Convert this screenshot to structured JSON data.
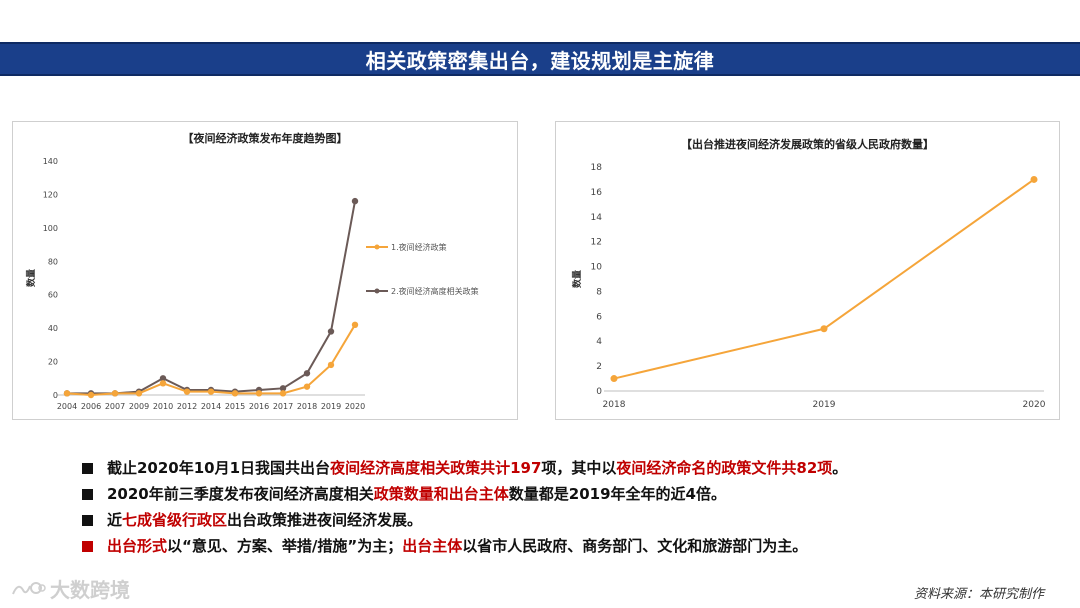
{
  "header": {
    "title": "相关政策密集出台，建设规划是主旋律"
  },
  "colors": {
    "banner": "#1a3f8a",
    "orange": "#f5a53a",
    "gray_line": "#6b5a57",
    "accent_red": "#c00000"
  },
  "chart_data": [
    {
      "type": "line",
      "title": "【夜间经济政策发布年度趋势图】",
      "ylabel": "数量",
      "xlabel": "",
      "categories": [
        "2004",
        "2006",
        "2007",
        "2009",
        "2010",
        "2012",
        "2014",
        "2015",
        "2016",
        "2017",
        "2018",
        "2019",
        "2020"
      ],
      "ylim": [
        0,
        140
      ],
      "yticks": [
        "0",
        "20",
        "40",
        "60",
        "80",
        "100",
        "120",
        "140"
      ],
      "legend_position": "right",
      "series": [
        {
          "name": "1.夜间经济政策",
          "color": "#f5a53a",
          "values": [
            1,
            0,
            1,
            1,
            7,
            2,
            2,
            1,
            1,
            1,
            5,
            18,
            42
          ]
        },
        {
          "name": "2.夜间经济高度相关政策",
          "color": "#6b5a57",
          "values": [
            1,
            1,
            1,
            2,
            10,
            3,
            3,
            2,
            3,
            4,
            13,
            38,
            116
          ]
        }
      ]
    },
    {
      "type": "line",
      "title": "【出台推进夜间经济发展政策的省级人民政府数量】",
      "ylabel": "数量",
      "xlabel": "",
      "categories": [
        "2018",
        "2019",
        "2020"
      ],
      "ylim": [
        0,
        18
      ],
      "yticks": [
        "0",
        "2",
        "4",
        "6",
        "8",
        "10",
        "12",
        "14",
        "16",
        "18"
      ],
      "series": [
        {
          "color": "#f5a53a",
          "values": [
            1,
            5,
            17
          ]
        }
      ]
    }
  ],
  "bullets": [
    {
      "segments": [
        {
          "text": "截止2020年10月1日我国共出台",
          "red": false
        },
        {
          "text": "夜间经济高度相关政策共计197",
          "red": true
        },
        {
          "text": "项，其中以",
          "red": false
        },
        {
          "text": "夜间经济命名的政策文件共82项",
          "red": true
        },
        {
          "text": "。",
          "red": false
        }
      ],
      "mark_red": false
    },
    {
      "segments": [
        {
          "text": "2020年前三季度发布夜间经济高度相关",
          "red": false
        },
        {
          "text": "政策数量和出台主体",
          "red": true
        },
        {
          "text": "数量都是2019年全年的近4倍。",
          "red": false
        }
      ],
      "mark_red": false
    },
    {
      "segments": [
        {
          "text": "近",
          "red": false
        },
        {
          "text": "七成省级行政区",
          "red": true
        },
        {
          "text": "出台政策推进夜间经济发展。",
          "red": false
        }
      ],
      "mark_red": false
    },
    {
      "segments": [
        {
          "text": "出台形式",
          "red": true
        },
        {
          "text": "以“意见、方案、举措/措施”为主；",
          "red": false
        },
        {
          "text": "出台主体",
          "red": true
        },
        {
          "text": "以省市人民政府、商务部门、文化和旅游部门为主。",
          "red": false
        }
      ],
      "mark_red": true
    }
  ],
  "footer": {
    "logo_text": "大数跨境",
    "source": "资料来源：本研究制作"
  }
}
